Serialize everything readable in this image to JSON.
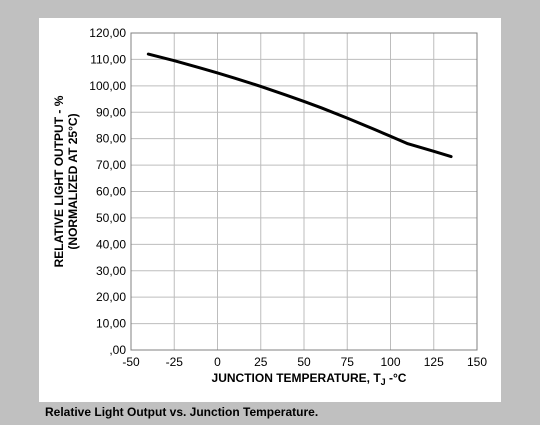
{
  "caption": "Relative Light Output vs. Junction Temperature.",
  "chart_data": {
    "type": "line",
    "title": "",
    "xlabel": "JUNCTION TEMPERATURE, T",
    "xlabel_subscript": "J",
    "xlabel_suffix": " -°C",
    "ylabel_line1": "RELATIVE LIGHT OUTPUT - %",
    "ylabel_line2": "(NORMALIZED AT 25°C)",
    "xlim": [
      -50,
      150
    ],
    "ylim": [
      0,
      120
    ],
    "x_ticks": [
      -50,
      -25,
      0,
      25,
      50,
      75,
      100,
      125,
      150
    ],
    "x_tick_labels": [
      "-50",
      "-25",
      "0",
      "25",
      "50",
      "75",
      "100",
      "125",
      "150"
    ],
    "y_ticks": [
      0,
      10,
      20,
      30,
      40,
      50,
      60,
      70,
      80,
      90,
      100,
      110,
      120
    ],
    "y_tick_labels": [
      ",00",
      "10,00",
      "20,00",
      "30,00",
      "40,00",
      "50,00",
      "60,00",
      "70,00",
      "80,00",
      "90,00",
      "100,00",
      "110,00",
      "120,00"
    ],
    "grid": true,
    "colors": {
      "line": "#000000",
      "grid": "#bdbdbd",
      "frame": "#808080",
      "background": "#c0c0c0"
    },
    "series": [
      {
        "x": [
          -40,
          -25,
          -10,
          0,
          10,
          25,
          40,
          50,
          60,
          75,
          90,
          100,
          110,
          125,
          135
        ],
        "y": [
          112,
          109.5,
          106.8,
          104.9,
          102.9,
          99.8,
          96.4,
          94.1,
          91.7,
          87.8,
          83.7,
          80.9,
          78.1,
          75.2,
          73.2
        ]
      }
    ]
  }
}
